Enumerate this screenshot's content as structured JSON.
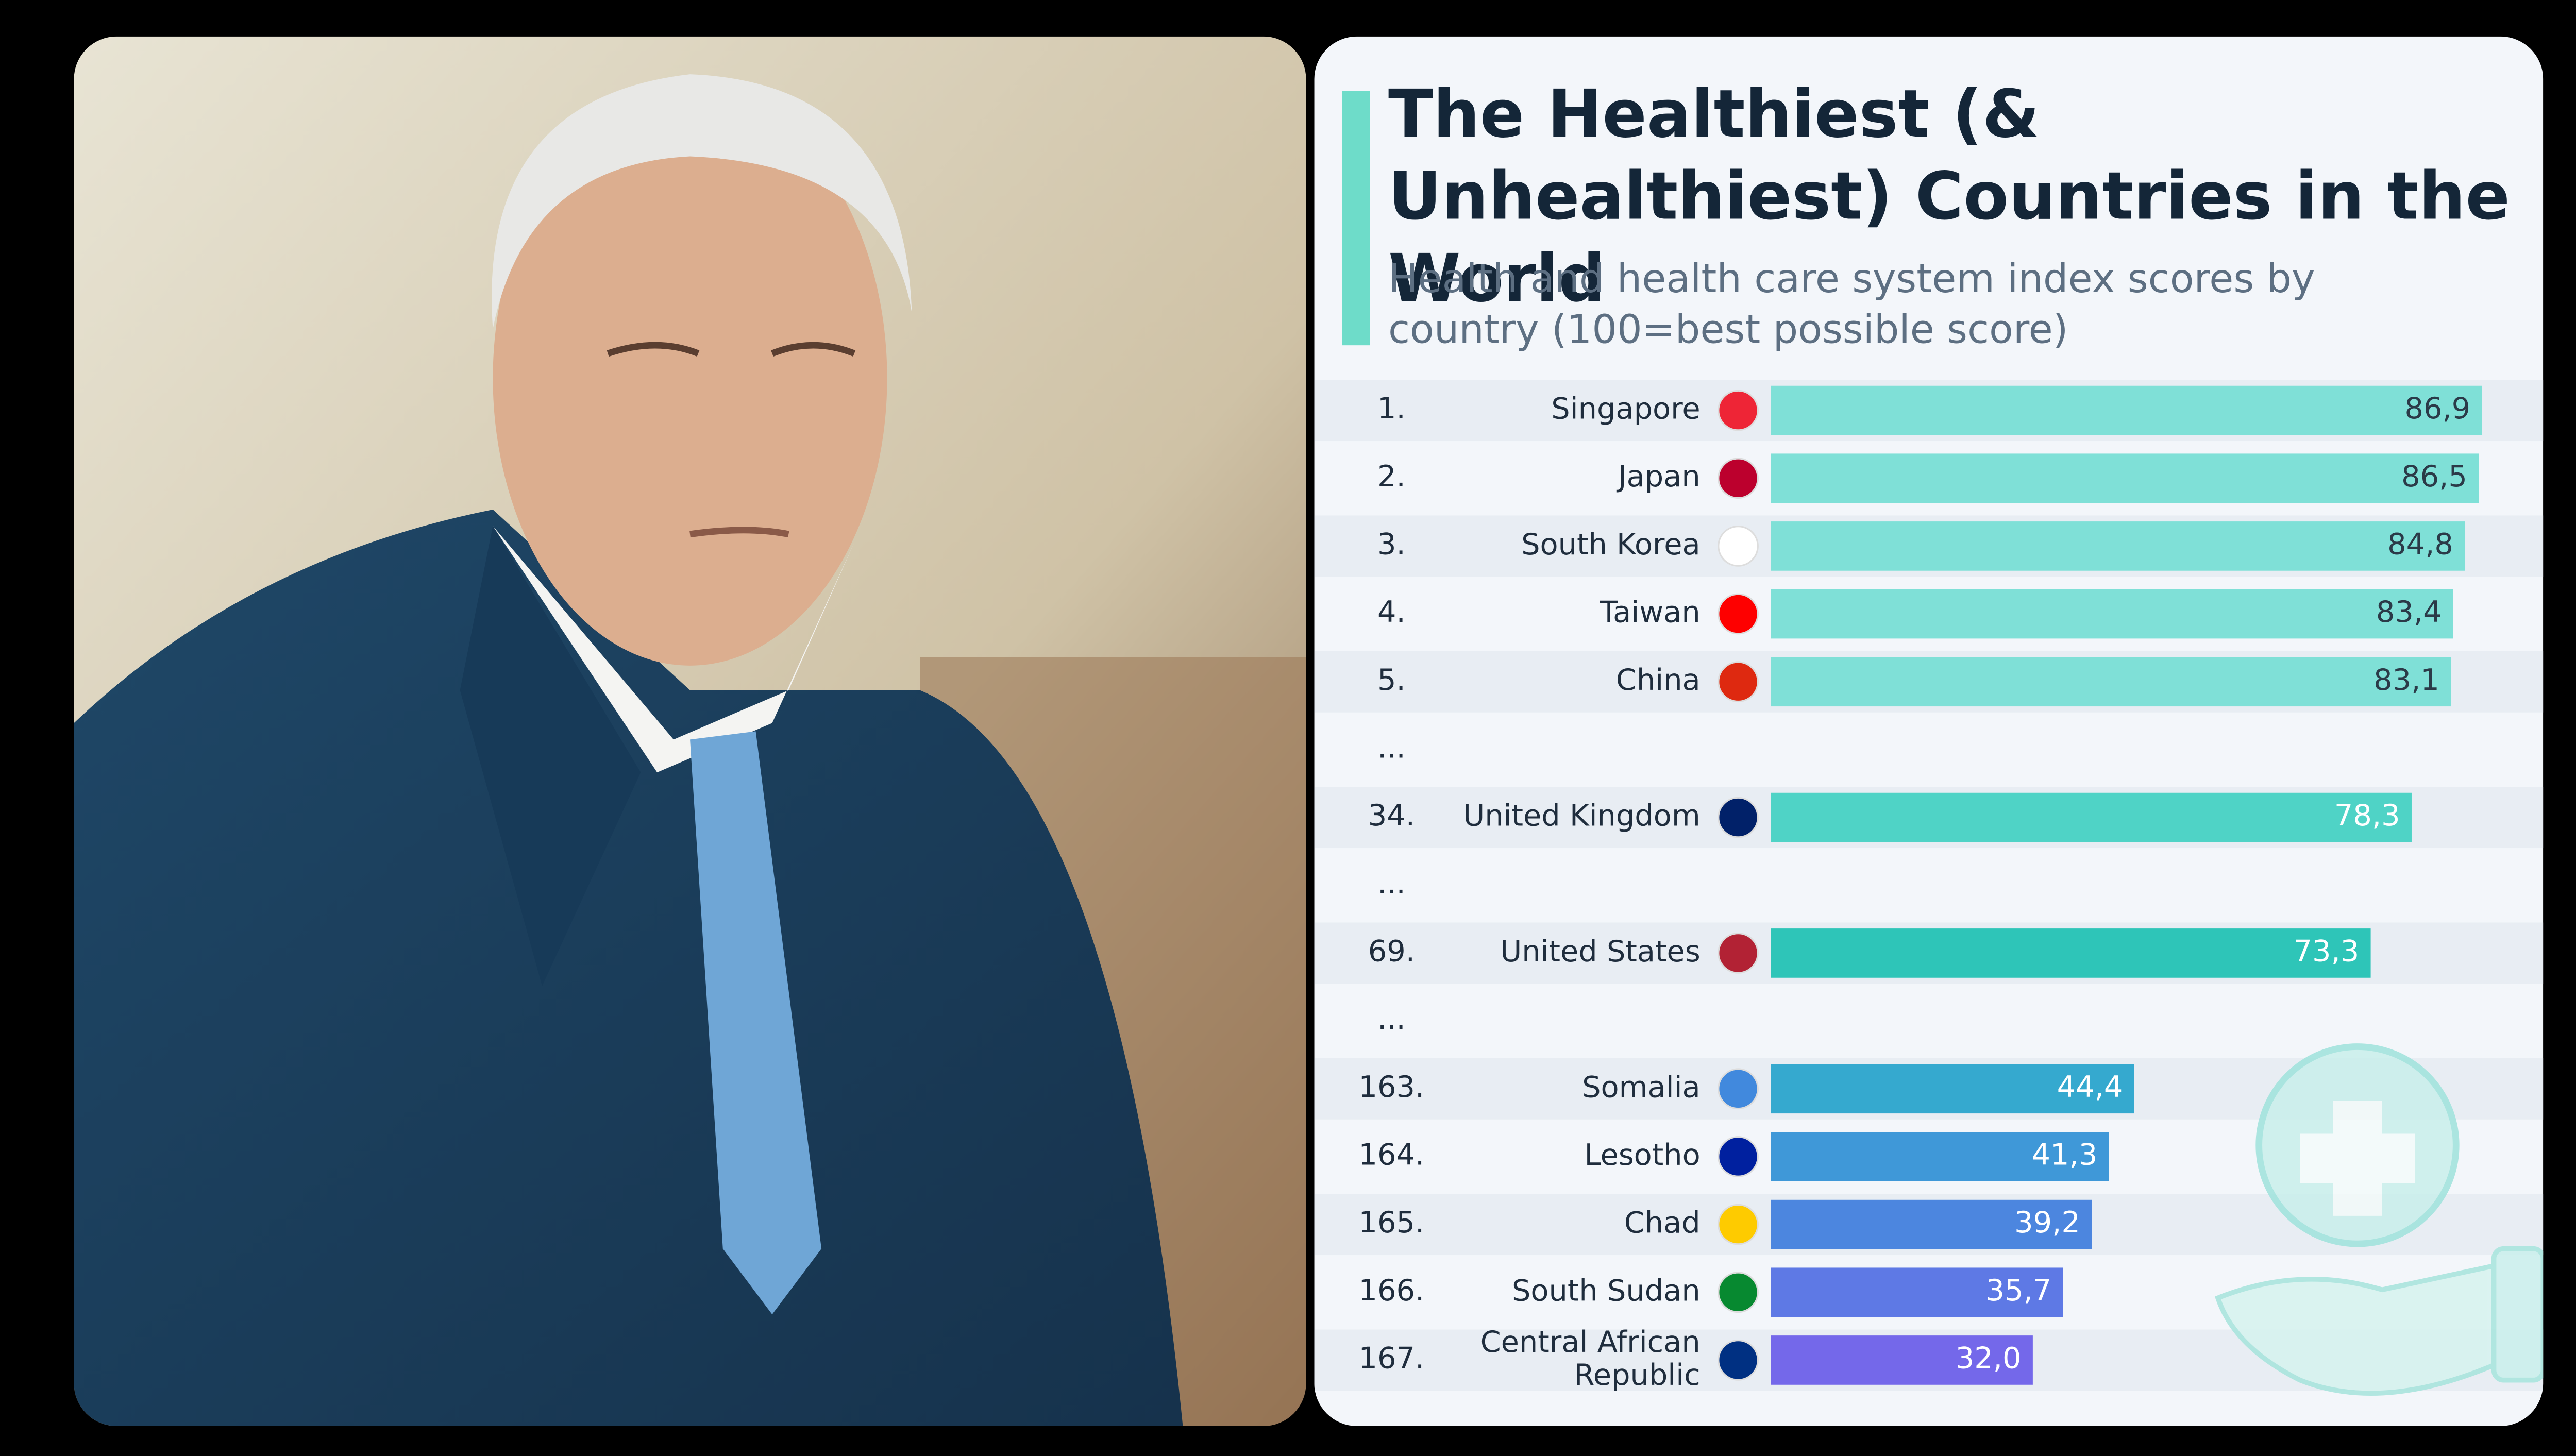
{
  "chart_data": {
    "type": "bar",
    "orientation": "horizontal",
    "title": "The Healthiest (& Unhealthiest) Countries in the World",
    "subtitle": "Health and health care system index scores by country (100=best possible score)",
    "ranks": [
      "1.",
      "2.",
      "3.",
      "4.",
      "5.",
      "...",
      "34.",
      "...",
      "69.",
      "...",
      "163.",
      "164.",
      "165.",
      "166.",
      "167."
    ],
    "categories": [
      "Singapore",
      "Japan",
      "South Korea",
      "Taiwan",
      "China",
      null,
      "United Kingdom",
      null,
      "United States",
      null,
      "Somalia",
      "Lesotho",
      "Chad",
      "South Sudan",
      "Central African Republic"
    ],
    "values": [
      86.9,
      86.5,
      84.8,
      83.4,
      83.1,
      null,
      78.3,
      null,
      73.3,
      null,
      44.4,
      41.3,
      39.2,
      35.7,
      32.0
    ],
    "value_labels": [
      "86,9",
      "86,5",
      "84,8",
      "83,4",
      "83,1",
      null,
      "78,3",
      null,
      "73,3",
      null,
      "44,4",
      "41,3",
      "39,2",
      "35,7",
      "32,0"
    ],
    "colors": [
      "#7fe0d7",
      "#7fe0d7",
      "#7fe0d7",
      "#7fe0d7",
      "#7fe0d7",
      null,
      "#4fd3c6",
      null,
      "#2ec5b8",
      null,
      "#35a9cf",
      "#3f98d8",
      "#4c86df",
      "#5e79e5",
      "#7468ea"
    ],
    "xlim": [
      0,
      100
    ]
  }
}
